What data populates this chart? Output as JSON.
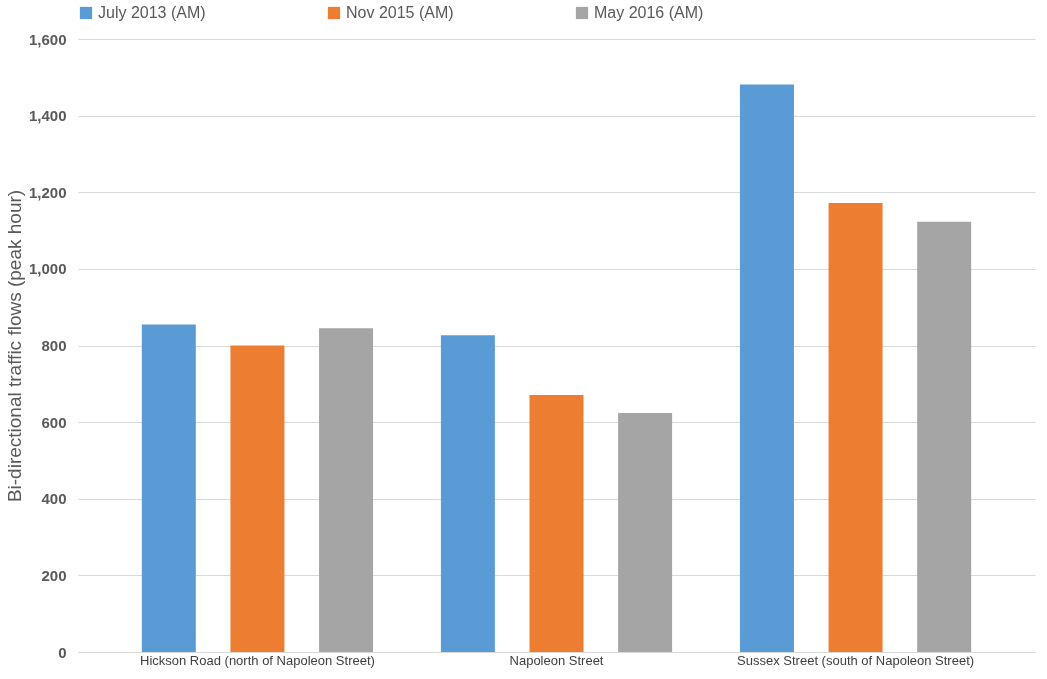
{
  "chart_data": {
    "type": "bar",
    "ylabel": "Bi-directional traffic flows (peak hour)",
    "categories": [
      "Hickson Road (north of Napoleon Street)",
      "Napoleon Street",
      "Sussex Street (south of Napoleon Street)"
    ],
    "series": [
      {
        "name": "July 2013 (AM)",
        "color": "#5b9bd5",
        "values": [
          855,
          827,
          1481
        ]
      },
      {
        "name": "Nov 2015 (AM)",
        "color": "#ed7d31",
        "values": [
          800,
          671,
          1172
        ]
      },
      {
        "name": "May 2016 (AM)",
        "color": "#a5a5a5",
        "values": [
          845,
          624,
          1123
        ]
      }
    ],
    "ylim": [
      0,
      1600
    ],
    "yticks": [
      {
        "value": 0,
        "label": "0"
      },
      {
        "value": 200,
        "label": "200"
      },
      {
        "value": 400,
        "label": "400"
      },
      {
        "value": 600,
        "label": "600"
      },
      {
        "value": 800,
        "label": "800"
      },
      {
        "value": 1000,
        "label": "1,000"
      },
      {
        "value": 1200,
        "label": "1,200"
      },
      {
        "value": 1400,
        "label": "1,400"
      },
      {
        "value": 1600,
        "label": "1,600"
      }
    ],
    "grid": "y",
    "legend": "top"
  }
}
